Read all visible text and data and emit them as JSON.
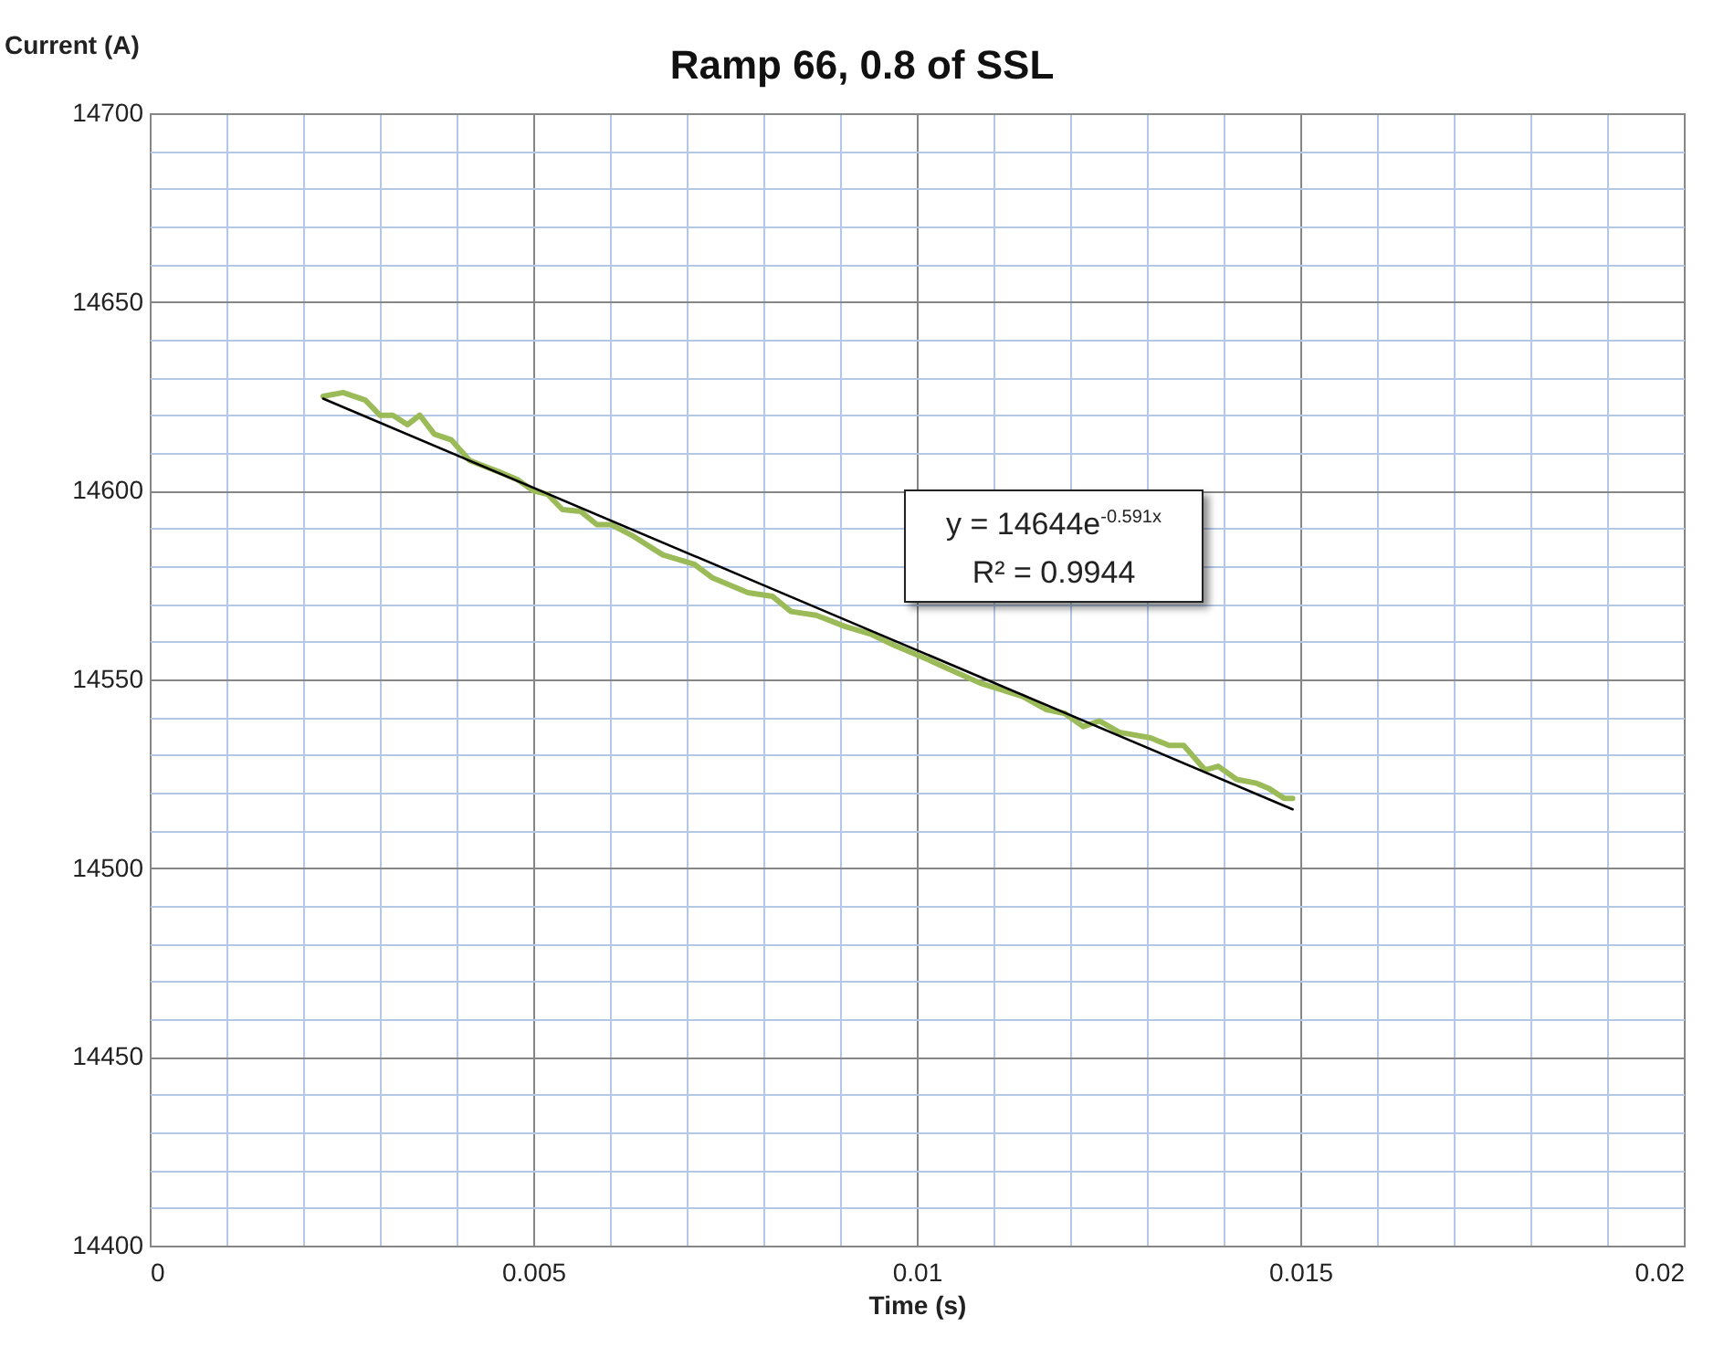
{
  "chart_data": {
    "type": "line",
    "title": "Ramp 66, 0.8 of SSL",
    "xlabel": "Time (s)",
    "ylabel": "Current (A)",
    "annotations": [
      "y = 14644e$^{-0.591x}$",
      "R² = 0.9944"
    ],
    "xlim": [
      0,
      0.02
    ],
    "ylim": [
      14400,
      14700
    ],
    "xticks": [
      0,
      {
        "value": 0.001,
        "label": null
      },
      {
        "value": 0.002,
        "label": null
      },
      {
        "value": 0.003,
        "label": null
      },
      {
        "value": 0.004,
        "label": null
      },
      0.005,
      {
        "value": 0.006,
        "label": null
      },
      {
        "value": 0.007,
        "label": null
      },
      {
        "value": 0.008,
        "label": null
      },
      {
        "value": 0.009,
        "label": null
      },
      0.01,
      {
        "value": 0.011,
        "label": null
      },
      {
        "value": 0.012,
        "label": null
      },
      {
        "value": 0.013,
        "label": null
      },
      {
        "value": 0.014,
        "label": null
      },
      0.015,
      {
        "value": 0.016,
        "label": null
      },
      {
        "value": 0.017,
        "label": null
      },
      {
        "value": 0.018,
        "label": null
      },
      {
        "value": 0.019,
        "label": null
      },
      0.02
    ],
    "yticks": [
      14400,
      {
        "value": 14410,
        "label": null
      },
      {
        "value": 14420,
        "label": null
      },
      {
        "value": 14430,
        "label": null
      },
      {
        "value": 14440,
        "label": null
      },
      14450,
      {
        "value": 14460,
        "label": null
      },
      {
        "value": 14470,
        "label": null
      },
      {
        "value": 14480,
        "label": null
      },
      {
        "value": 14490,
        "label": null
      },
      14500,
      {
        "value": 14510,
        "label": null
      },
      {
        "value": 14520,
        "label": null
      },
      {
        "value": 14530,
        "label": null
      },
      {
        "value": 14540,
        "label": null
      },
      14550,
      {
        "value": 14560,
        "label": null
      },
      {
        "value": 14570,
        "label": null
      },
      {
        "value": 14580,
        "label": null
      },
      {
        "value": 14590,
        "label": null
      },
      14600,
      {
        "value": 14610,
        "label": null
      },
      {
        "value": 14620,
        "label": null
      },
      {
        "value": 14630,
        "label": null
      },
      {
        "value": 14640,
        "label": null
      },
      14650,
      {
        "value": 14660,
        "label": null
      },
      {
        "value": 14670,
        "label": null
      },
      {
        "value": 14680,
        "label": null
      },
      {
        "value": 14690,
        "label": null
      },
      14700
    ],
    "grid": true,
    "series": [
      {
        "type": "line",
        "color": "#9bbb59",
        "x": [
          0.00226,
          0.00252,
          0.00281,
          0.003,
          0.00317,
          0.00336,
          0.00352,
          0.00371,
          0.00393,
          0.00417,
          0.00455,
          0.00479,
          0.005,
          0.00519,
          0.00538,
          0.00562,
          0.00583,
          0.00602,
          0.0063,
          0.00669,
          0.0071,
          0.00733,
          0.0078,
          0.00812,
          0.00836,
          0.00869,
          0.00907,
          0.0094,
          0.00971,
          0.01012,
          0.0105,
          0.01083,
          0.01107,
          0.01138,
          0.01169,
          0.01193,
          0.01217,
          0.01238,
          0.01264,
          0.01305,
          0.01329,
          0.01348,
          0.01376,
          0.01393,
          0.01417,
          0.01443,
          0.0146,
          0.01479,
          0.0149
        ],
        "values": [
          14625,
          14626,
          14624,
          14620,
          14620,
          14617.5,
          14620,
          14615,
          14613.5,
          14608,
          14605,
          14603,
          14600,
          14599,
          14595,
          14594.5,
          14591,
          14591,
          14588,
          14583,
          14580.5,
          14577,
          14573,
          14572,
          14568,
          14567,
          14564,
          14562,
          14559,
          14555.5,
          14552,
          14549,
          14547.5,
          14545.5,
          14542,
          14541,
          14537.5,
          14539,
          14536,
          14534.5,
          14532.5,
          14532.5,
          14526,
          14527,
          14523.5,
          14522.5,
          14521,
          14518.5,
          14518.5
        ]
      },
      {
        "type": "line",
        "color": "#000000",
        "x": [
          0.00226,
          0.0086,
          0.0149
        ],
        "values": [
          14624.4,
          14569.8,
          14515.6
        ]
      }
    ]
  }
}
